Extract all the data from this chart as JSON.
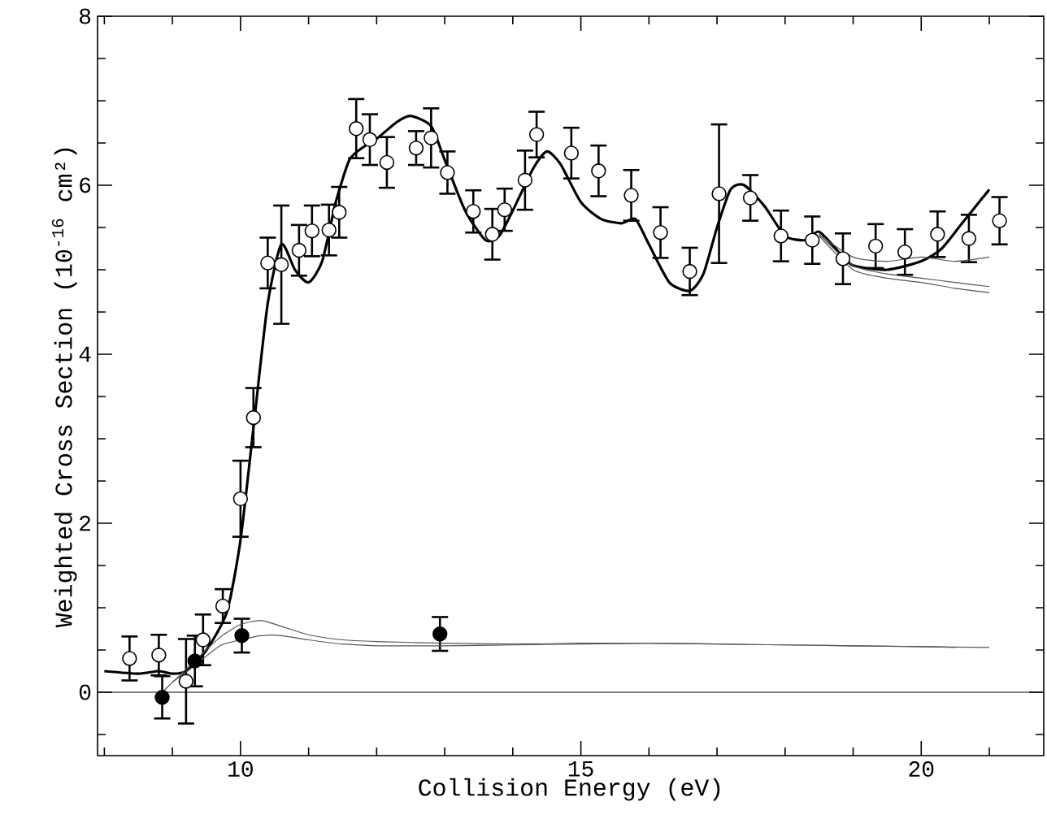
{
  "chart_data": {
    "type": "scatter",
    "xlabel": "Collision Energy (eV)",
    "ylabel": "Weighted Cross Section (10$^{-16}$ cm²)",
    "xlim": [
      7.9,
      21.8
    ],
    "ylim": [
      -0.75,
      8
    ],
    "xticks": [
      {
        "value": 8,
        "label": null
      },
      {
        "value": 9,
        "label": null
      },
      10,
      {
        "value": 11,
        "label": null
      },
      {
        "value": 12,
        "label": null
      },
      {
        "value": 13,
        "label": null
      },
      {
        "value": 14,
        "label": null
      },
      15,
      {
        "value": 16,
        "label": null
      },
      {
        "value": 17,
        "label": null
      },
      {
        "value": 18,
        "label": null
      },
      {
        "value": 19,
        "label": null
      },
      20,
      {
        "value": 21,
        "label": null
      }
    ],
    "yticks": [
      {
        "value": -0.5,
        "label": null
      },
      0,
      {
        "value": 0.5,
        "label": null
      },
      {
        "value": 1,
        "label": null
      },
      {
        "value": 1.5,
        "label": null
      },
      2,
      {
        "value": 2.5,
        "label": null
      },
      {
        "value": 3,
        "label": null
      },
      {
        "value": 3.5,
        "label": null
      },
      4,
      {
        "value": 4.5,
        "label": null
      },
      {
        "value": 5,
        "label": null
      },
      {
        "value": 5.5,
        "label": null
      },
      6,
      {
        "value": 6.5,
        "label": null
      },
      {
        "value": 7,
        "label": null
      },
      {
        "value": 7.5,
        "label": null
      },
      8
    ],
    "marker": "circle",
    "grid": false,
    "ref_lines": [
      {
        "axis": "y",
        "value": 0,
        "color": "#000000"
      }
    ],
    "series": [
      {
        "color": "#ffffff",
        "x": [
          8.37,
          8.8,
          9.2,
          9.45,
          9.74,
          10.0,
          10.19,
          10.4,
          10.6,
          10.86,
          11.05,
          11.3,
          11.45,
          11.7,
          11.9,
          12.15,
          12.58,
          12.8,
          13.04,
          13.42,
          13.7,
          13.88,
          14.18,
          14.35,
          14.86,
          15.26,
          15.74,
          16.17,
          16.6,
          17.03,
          17.49,
          17.94,
          18.4,
          18.85,
          19.33,
          19.76,
          20.24,
          20.7,
          21.15
        ],
        "values": [
          0.4,
          0.44,
          0.13,
          0.62,
          1.02,
          2.29,
          3.25,
          5.08,
          5.06,
          5.23,
          5.46,
          5.47,
          5.68,
          6.67,
          6.54,
          6.27,
          6.44,
          6.56,
          6.15,
          5.69,
          5.42,
          5.71,
          6.06,
          6.6,
          6.38,
          6.17,
          5.88,
          5.44,
          4.98,
          5.9,
          5.85,
          5.4,
          5.35,
          5.13,
          5.28,
          5.21,
          5.42,
          5.37,
          5.58
        ],
        "errors": [
          0.26,
          0.24,
          0.5,
          0.3,
          0.2,
          0.45,
          0.35,
          0.3,
          0.7,
          0.3,
          0.3,
          0.3,
          0.3,
          0.35,
          0.3,
          0.3,
          0.2,
          0.35,
          0.25,
          0.25,
          0.3,
          0.25,
          0.35,
          0.27,
          0.3,
          0.3,
          0.3,
          0.3,
          0.28,
          0.82,
          0.27,
          0.3,
          0.28,
          0.3,
          0.26,
          0.27,
          0.27,
          0.28,
          0.28
        ]
      },
      {
        "color": "#000000",
        "x": [
          8.85,
          9.33,
          10.02,
          12.93
        ],
        "values": [
          -0.06,
          0.37,
          0.67,
          0.69
        ],
        "errors": [
          0.25,
          0.3,
          0.2,
          0.2
        ]
      },
      {
        "type": "line",
        "color": "#000000",
        "marker": "none",
        "x": [
          8.0,
          8.5,
          8.8,
          9.0,
          9.2,
          9.5,
          9.8,
          10.0,
          10.2,
          10.4,
          10.6,
          10.8,
          11.0,
          11.2,
          11.4,
          11.6,
          11.8,
          12.0,
          12.3,
          12.5,
          12.8,
          13.0,
          13.3,
          13.6,
          13.8,
          14.0,
          14.3,
          14.5,
          14.7,
          15.0,
          15.3,
          15.6,
          15.8,
          16.0,
          16.3,
          16.6,
          16.8,
          17.0,
          17.2,
          17.4,
          17.7,
          18.0,
          18.3,
          18.5,
          18.8,
          19.0,
          19.5,
          20.0,
          20.3,
          20.6,
          20.9,
          21.0
        ],
        "values": [
          0.25,
          0.22,
          0.25,
          0.22,
          0.25,
          0.5,
          0.95,
          1.8,
          3.2,
          4.6,
          5.3,
          5.0,
          4.85,
          5.1,
          5.8,
          6.3,
          6.45,
          6.55,
          6.75,
          6.82,
          6.7,
          6.3,
          5.7,
          5.35,
          5.4,
          5.7,
          6.2,
          6.4,
          6.25,
          5.8,
          5.6,
          5.55,
          5.6,
          5.3,
          4.85,
          4.75,
          4.95,
          5.5,
          5.95,
          6.0,
          5.75,
          5.4,
          5.35,
          5.45,
          5.2,
          5.05,
          5.0,
          5.1,
          5.25,
          5.55,
          5.85,
          5.95
        ]
      },
      {
        "type": "line",
        "color": "#555555",
        "marker": "none",
        "x": [
          18.5,
          19.0,
          19.5,
          20.0,
          20.5,
          21.0
        ],
        "values": [
          5.42,
          5.15,
          5.1,
          5.15,
          5.1,
          5.15
        ]
      },
      {
        "type": "line",
        "color": "#555555",
        "marker": "none",
        "x": [
          18.5,
          19.0,
          19.5,
          20.0,
          20.5,
          21.0
        ],
        "values": [
          5.42,
          5.05,
          4.95,
          4.9,
          4.85,
          4.8
        ]
      },
      {
        "type": "line",
        "color": "#555555",
        "marker": "none",
        "x": [
          18.5,
          19.0,
          19.5,
          20.0,
          20.5,
          21.0
        ],
        "values": [
          5.4,
          5.0,
          4.9,
          4.85,
          4.78,
          4.73
        ]
      },
      {
        "type": "line",
        "color": "#555555",
        "marker": "none",
        "x": [
          8.85,
          9.3,
          9.7,
          10.0,
          10.3,
          10.6,
          11.0,
          11.5,
          12.0,
          13.0,
          14.0,
          15.0,
          16.0,
          17.0,
          18.0,
          19.0,
          20.0,
          21.0
        ],
        "values": [
          0.0,
          0.35,
          0.65,
          0.8,
          0.85,
          0.78,
          0.68,
          0.62,
          0.6,
          0.58,
          0.57,
          0.58,
          0.58,
          0.57,
          0.56,
          0.55,
          0.54,
          0.53
        ]
      },
      {
        "type": "line",
        "color": "#555555",
        "marker": "none",
        "x": [
          9.0,
          9.3,
          9.7,
          10.0,
          10.3,
          10.6,
          11.0,
          11.5,
          12.0,
          13.0,
          14.0,
          15.0,
          16.0,
          17.0,
          18.0,
          19.0,
          20.0,
          20.5
        ],
        "values": [
          0.12,
          0.3,
          0.55,
          0.62,
          0.67,
          0.67,
          0.62,
          0.57,
          0.55,
          0.55,
          0.56,
          0.57,
          0.58,
          0.57,
          0.56,
          0.55,
          0.54,
          0.53
        ]
      }
    ]
  }
}
